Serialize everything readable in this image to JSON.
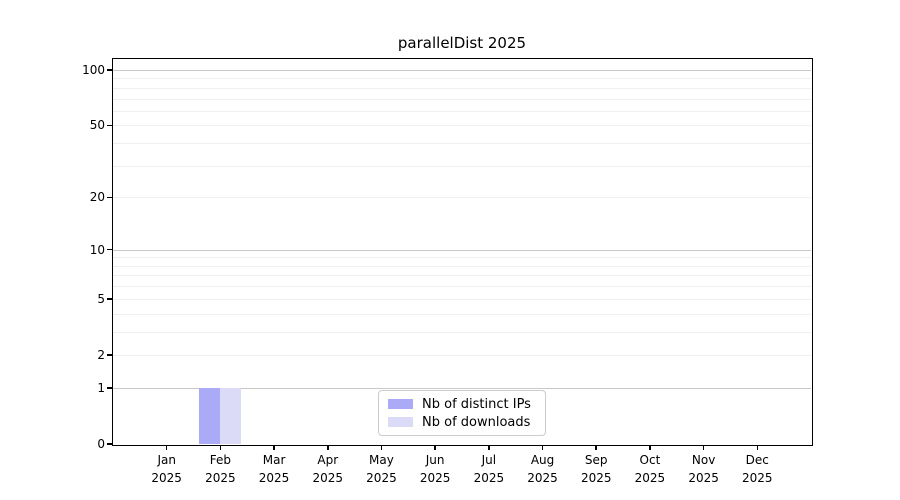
{
  "chart_data": {
    "type": "bar",
    "title": "parallelDist 2025",
    "categories": [
      "Jan 2025",
      "Feb 2025",
      "Mar 2025",
      "Apr 2025",
      "May 2025",
      "Jun 2025",
      "Jul 2025",
      "Aug 2025",
      "Sep 2025",
      "Oct 2025",
      "Nov 2025",
      "Dec 2025"
    ],
    "series": [
      {
        "name": "Nb of distinct IPs",
        "color": "#abaaf7",
        "values": [
          0,
          1,
          0,
          0,
          0,
          0,
          0,
          0,
          0,
          0,
          0,
          0
        ]
      },
      {
        "name": "Nb of downloads",
        "color": "#dbdbf8",
        "values": [
          0,
          1,
          0,
          0,
          0,
          0,
          0,
          0,
          0,
          0,
          0,
          0
        ]
      }
    ],
    "xlabel": "",
    "ylabel": "",
    "yscale": "log1p",
    "ylim": [
      0,
      114
    ],
    "yticks": [
      0,
      1,
      2,
      5,
      10,
      20,
      50,
      100
    ],
    "ytick_labels": [
      "0",
      "1",
      "2",
      "5",
      "10",
      "20",
      "50",
      "100"
    ],
    "y_major_gridlines": [
      1,
      10,
      100
    ],
    "y_minor_gridlines": [
      2,
      3,
      4,
      5,
      6,
      7,
      8,
      9,
      20,
      30,
      40,
      50,
      60,
      70,
      80,
      90
    ],
    "grid": true,
    "legend": {
      "position": "lower center",
      "entries": [
        "Nb of distinct IPs",
        "Nb of downloads"
      ]
    },
    "colors": {
      "background": "#ffffff",
      "axis": "#000000",
      "text": "#000000",
      "major_grid": "#c8c8c8",
      "minor_grid": "#efefef",
      "legend_border": "#cccccc"
    }
  }
}
